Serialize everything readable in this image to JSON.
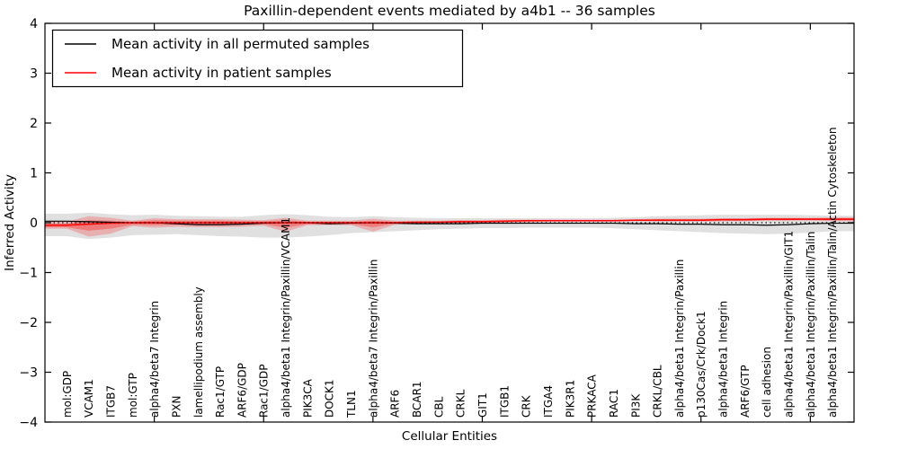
{
  "figure": {
    "title": "Paxillin-dependent events mediated by a4b1 -- 36 samples",
    "xlabel": "Cellular Entities",
    "ylabel": "Inferred Activity"
  },
  "legend": {
    "entries": [
      {
        "label": "Mean activity in all permuted samples",
        "color": "#000000"
      },
      {
        "label": "Mean activity in patient samples",
        "color": "#ff0000"
      }
    ]
  },
  "chart_data": {
    "type": "line",
    "title": "Paxillin-dependent events mediated by a4b1 -- 36 samples",
    "xlabel": "Cellular Entities",
    "ylabel": "Inferred Activity",
    "ylim": [
      -4,
      4
    ],
    "xlim": [
      0,
      37
    ],
    "grid": false,
    "legend_position": "upper-left",
    "y_ticks": [
      4,
      3,
      2,
      1,
      0,
      -1,
      -2,
      -3,
      -4
    ],
    "y_tick_labels": [
      "4",
      "3",
      "2",
      "1",
      "0",
      "−1",
      "−2",
      "−3",
      "−4"
    ],
    "x_major_ticks": [
      5,
      10,
      15,
      20,
      25,
      30,
      35
    ],
    "categories": [
      "mol:GDP",
      "VCAM1",
      "ITGB7",
      "mol:GTP",
      "alpha4/beta7 Integrin",
      "PXN",
      "lamellipodium assembly",
      "Rac1/GTP",
      "ARF6/GDP",
      "Rac1/GDP",
      "alpha4/beta1 Integrin/Paxillin/VCAM1",
      "PIK3CA",
      "DOCK1",
      "TLN1",
      "alpha4/beta7 Integrin/Paxillin",
      "ARF6",
      "BCAR1",
      "CBL",
      "CRKL",
      "GIT1",
      "ITGB1",
      "CRK",
      "ITGA4",
      "PIK3R1",
      "PRKACA",
      "RAC1",
      "PI3K",
      "CRKL/CBL",
      "alpha4/beta1 Integrin/Paxillin",
      "p130Cas/Crk/Dock1",
      "alpha4/beta1 Integrin",
      "ARF6/GTP",
      "cell adhesion",
      "alpha4/beta1 Integrin/Paxillin/GIT1",
      "alpha4/beta1 Integrin/Paxillin/Talin",
      "alpha4/beta1 Integrin/Paxillin/Talin/Actin Cytoskeleton"
    ],
    "series": [
      {
        "name": "Mean activity in all permuted samples",
        "color": "#000000",
        "values": [
          0.03,
          0.02,
          0.01,
          0.0,
          0.0,
          -0.02,
          -0.04,
          -0.04,
          -0.03,
          -0.01,
          0.0,
          0.0,
          -0.02,
          -0.01,
          0.0,
          -0.01,
          -0.02,
          -0.02,
          -0.02,
          -0.01,
          -0.01,
          -0.01,
          -0.01,
          -0.01,
          -0.01,
          -0.01,
          -0.02,
          -0.02,
          -0.03,
          -0.03,
          -0.04,
          -0.04,
          -0.05,
          -0.04,
          -0.02,
          -0.01
        ]
      },
      {
        "name": "Mean activity in patient samples",
        "color": "#ff0000",
        "values": [
          -0.05,
          -0.03,
          -0.01,
          0.0,
          0.0,
          0.0,
          0.0,
          0.0,
          0.0,
          0.0,
          0.0,
          0.0,
          0.0,
          0.0,
          0.0,
          0.0,
          0.01,
          0.01,
          0.02,
          0.02,
          0.03,
          0.04,
          0.04,
          0.04,
          0.04,
          0.04,
          0.05,
          0.05,
          0.05,
          0.05,
          0.06,
          0.06,
          0.07,
          0.07,
          0.07,
          0.07
        ]
      }
    ],
    "bands": [
      {
        "name": "permuted-samples-std-band",
        "color": "#000000",
        "opacity": 0.12,
        "upper": [
          0.18,
          0.2,
          0.17,
          0.15,
          0.16,
          0.14,
          0.13,
          0.12,
          0.12,
          0.15,
          0.17,
          0.15,
          0.12,
          0.11,
          0.13,
          0.11,
          0.1,
          0.09,
          0.09,
          0.09,
          0.09,
          0.09,
          0.09,
          0.09,
          0.09,
          0.1,
          0.11,
          0.13,
          0.14,
          0.15,
          0.16,
          0.16,
          0.16,
          0.16,
          0.15,
          0.14
        ],
        "lower": [
          -0.27,
          -0.33,
          -0.3,
          -0.25,
          -0.24,
          -0.23,
          -0.25,
          -0.27,
          -0.28,
          -0.3,
          -0.3,
          -0.28,
          -0.25,
          -0.21,
          -0.19,
          -0.17,
          -0.15,
          -0.13,
          -0.12,
          -0.11,
          -0.11,
          -0.1,
          -0.1,
          -0.1,
          -0.1,
          -0.11,
          -0.13,
          -0.15,
          -0.17,
          -0.19,
          -0.21,
          -0.22,
          -0.23,
          -0.22,
          -0.2,
          -0.17
        ]
      },
      {
        "name": "patient-samples-std-band",
        "color": "#ff0000",
        "opacity": 0.22,
        "upper": [
          0.02,
          0.13,
          0.1,
          0.04,
          0.09,
          0.07,
          0.07,
          0.07,
          0.06,
          0.05,
          0.1,
          0.04,
          0.04,
          0.04,
          0.08,
          0.04,
          0.04,
          0.04,
          0.05,
          0.05,
          0.06,
          0.06,
          0.06,
          0.06,
          0.06,
          0.06,
          0.07,
          0.08,
          0.08,
          0.08,
          0.09,
          0.09,
          0.1,
          0.1,
          0.1,
          0.11
        ],
        "lower": [
          -0.12,
          -0.28,
          -0.22,
          -0.07,
          -0.1,
          -0.08,
          -0.09,
          -0.09,
          -0.08,
          -0.06,
          -0.18,
          -0.05,
          -0.05,
          -0.05,
          -0.18,
          -0.04,
          -0.03,
          -0.02,
          -0.02,
          -0.01,
          0.0,
          0.01,
          0.02,
          0.02,
          0.02,
          0.02,
          0.03,
          0.02,
          0.02,
          0.02,
          0.03,
          0.03,
          0.04,
          0.04,
          0.04,
          0.03
        ]
      },
      {
        "name": "patient-samples-inner-band",
        "color": "#ff0000",
        "opacity": 0.3,
        "upper": [
          -0.02,
          0.05,
          0.04,
          0.02,
          0.05,
          0.04,
          0.04,
          0.04,
          0.03,
          0.03,
          0.05,
          0.02,
          0.02,
          0.02,
          0.04,
          0.02,
          0.03,
          0.03,
          0.04,
          0.04,
          0.05,
          0.05,
          0.05,
          0.05,
          0.05,
          0.05,
          0.06,
          0.07,
          0.07,
          0.07,
          0.08,
          0.08,
          0.09,
          0.09,
          0.09,
          0.09
        ],
        "lower": [
          -0.09,
          -0.16,
          -0.12,
          -0.04,
          -0.05,
          -0.04,
          -0.05,
          -0.05,
          -0.04,
          -0.03,
          -0.1,
          -0.03,
          -0.03,
          -0.03,
          -0.09,
          -0.02,
          -0.01,
          0.0,
          0.0,
          0.01,
          0.02,
          0.02,
          0.03,
          0.03,
          0.03,
          0.03,
          0.04,
          0.04,
          0.04,
          0.04,
          0.04,
          0.04,
          0.05,
          0.05,
          0.06,
          0.05
        ]
      }
    ],
    "zero_line": {
      "style": "dotted",
      "color": "#000000",
      "y": 0
    }
  }
}
